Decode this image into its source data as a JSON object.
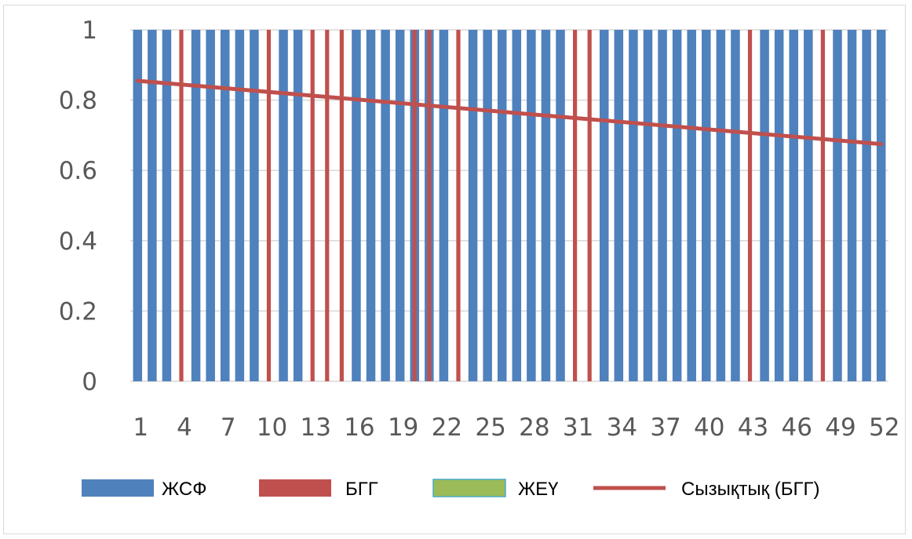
{
  "chart_data": {
    "type": "bar",
    "title": "",
    "xlabel": "",
    "ylabel": "",
    "ylim": [
      0,
      1
    ],
    "yticks": [
      "0",
      "0.2",
      "0.4",
      "0.6",
      "0.8",
      "1"
    ],
    "ytick_values": [
      0,
      0.2,
      0.4,
      0.6,
      0.8,
      1
    ],
    "x": [
      1,
      2,
      3,
      4,
      5,
      6,
      7,
      8,
      9,
      10,
      11,
      12,
      13,
      14,
      15,
      16,
      17,
      18,
      19,
      20,
      21,
      22,
      23,
      24,
      25,
      26,
      27,
      28,
      29,
      30,
      31,
      32,
      33,
      34,
      35,
      36,
      37,
      38,
      39,
      40,
      41,
      42,
      43,
      44,
      45,
      46,
      47,
      48,
      49,
      50,
      51,
      52
    ],
    "xtick_labels": [
      "1",
      "4",
      "7",
      "10",
      "13",
      "16",
      "19",
      "22",
      "25",
      "28",
      "31",
      "34",
      "37",
      "40",
      "43",
      "46",
      "49",
      "52"
    ],
    "xtick_values": [
      1,
      4,
      7,
      10,
      13,
      16,
      19,
      22,
      25,
      28,
      31,
      34,
      37,
      40,
      43,
      46,
      49,
      52
    ],
    "grid": {
      "horizontal": true,
      "vertical": false
    },
    "legend_position": "bottom",
    "series": [
      {
        "name": "ЖСФ",
        "kind": "bar",
        "color": "#4f81bd",
        "values": [
          1,
          1,
          1,
          0,
          1,
          1,
          1,
          1,
          1,
          0,
          1,
          1,
          0,
          0,
          0,
          1,
          1,
          1,
          1,
          1,
          1,
          1,
          0,
          1,
          1,
          1,
          1,
          1,
          1,
          1,
          0,
          0,
          1,
          1,
          1,
          1,
          1,
          1,
          1,
          1,
          1,
          1,
          0,
          1,
          1,
          1,
          1,
          0,
          1,
          1,
          1,
          1
        ]
      },
      {
        "name": "БГГ",
        "kind": "bar",
        "color": "#c0504d",
        "values": [
          0,
          0,
          0,
          1,
          0,
          0,
          0,
          0,
          0,
          1,
          0,
          0,
          1,
          1,
          1,
          0,
          0,
          0,
          0,
          1,
          1,
          0,
          1,
          0,
          0,
          0,
          0,
          0,
          0,
          0,
          1,
          1,
          0,
          0,
          0,
          0,
          0,
          0,
          0,
          0,
          0,
          0,
          1,
          0,
          0,
          0,
          0,
          1,
          0,
          0,
          0,
          0
        ]
      },
      {
        "name": "ЖЕҮ",
        "kind": "bar",
        "color": "#9bbb59",
        "values": [
          0,
          0,
          0,
          0,
          0,
          0,
          0,
          0,
          0,
          0,
          0,
          0,
          0,
          0,
          0,
          0,
          0,
          0,
          0,
          0,
          0,
          0,
          0,
          0,
          0,
          0,
          0,
          0,
          0,
          0,
          0,
          0,
          0,
          0,
          0,
          0,
          0,
          0,
          0,
          0,
          0,
          0,
          0,
          0,
          0,
          0,
          0,
          0,
          0,
          0,
          0,
          0
        ]
      },
      {
        "name": "Сызықтық (БГГ)",
        "kind": "trendline",
        "color": "#c0504d",
        "start": [
          1,
          0.855
        ],
        "end": [
          52,
          0.675
        ]
      }
    ]
  }
}
